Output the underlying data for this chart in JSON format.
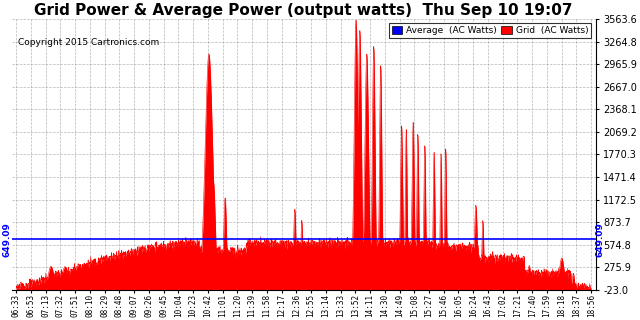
{
  "title": "Grid Power & Average Power (output watts)  Thu Sep 10 19:07",
  "copyright": "Copyright 2015 Cartronics.com",
  "avg_value": 649.09,
  "y_min": -23.0,
  "y_max": 3563.6,
  "y_ticks": [
    -23.0,
    275.9,
    574.8,
    873.7,
    1172.5,
    1471.4,
    1770.3,
    2069.2,
    2368.1,
    2667.0,
    2965.9,
    3264.8,
    3563.6
  ],
  "x_labels": [
    "06:33",
    "06:53",
    "07:13",
    "07:32",
    "07:51",
    "08:10",
    "08:29",
    "08:48",
    "09:07",
    "09:26",
    "09:45",
    "10:04",
    "10:23",
    "10:42",
    "11:01",
    "11:20",
    "11:39",
    "11:58",
    "12:17",
    "12:36",
    "12:55",
    "13:14",
    "13:33",
    "13:52",
    "14:11",
    "14:30",
    "14:49",
    "15:08",
    "15:27",
    "15:46",
    "16:05",
    "16:24",
    "16:43",
    "17:02",
    "17:21",
    "17:40",
    "17:59",
    "18:18",
    "18:37",
    "18:56"
  ],
  "grid_color": "#ff0000",
  "avg_line_color": "#0000ff",
  "background_color": "#ffffff",
  "title_fontsize": 11,
  "legend_avg_label": "Average  (AC Watts)",
  "legend_grid_label": "Grid  (AC Watts)"
}
